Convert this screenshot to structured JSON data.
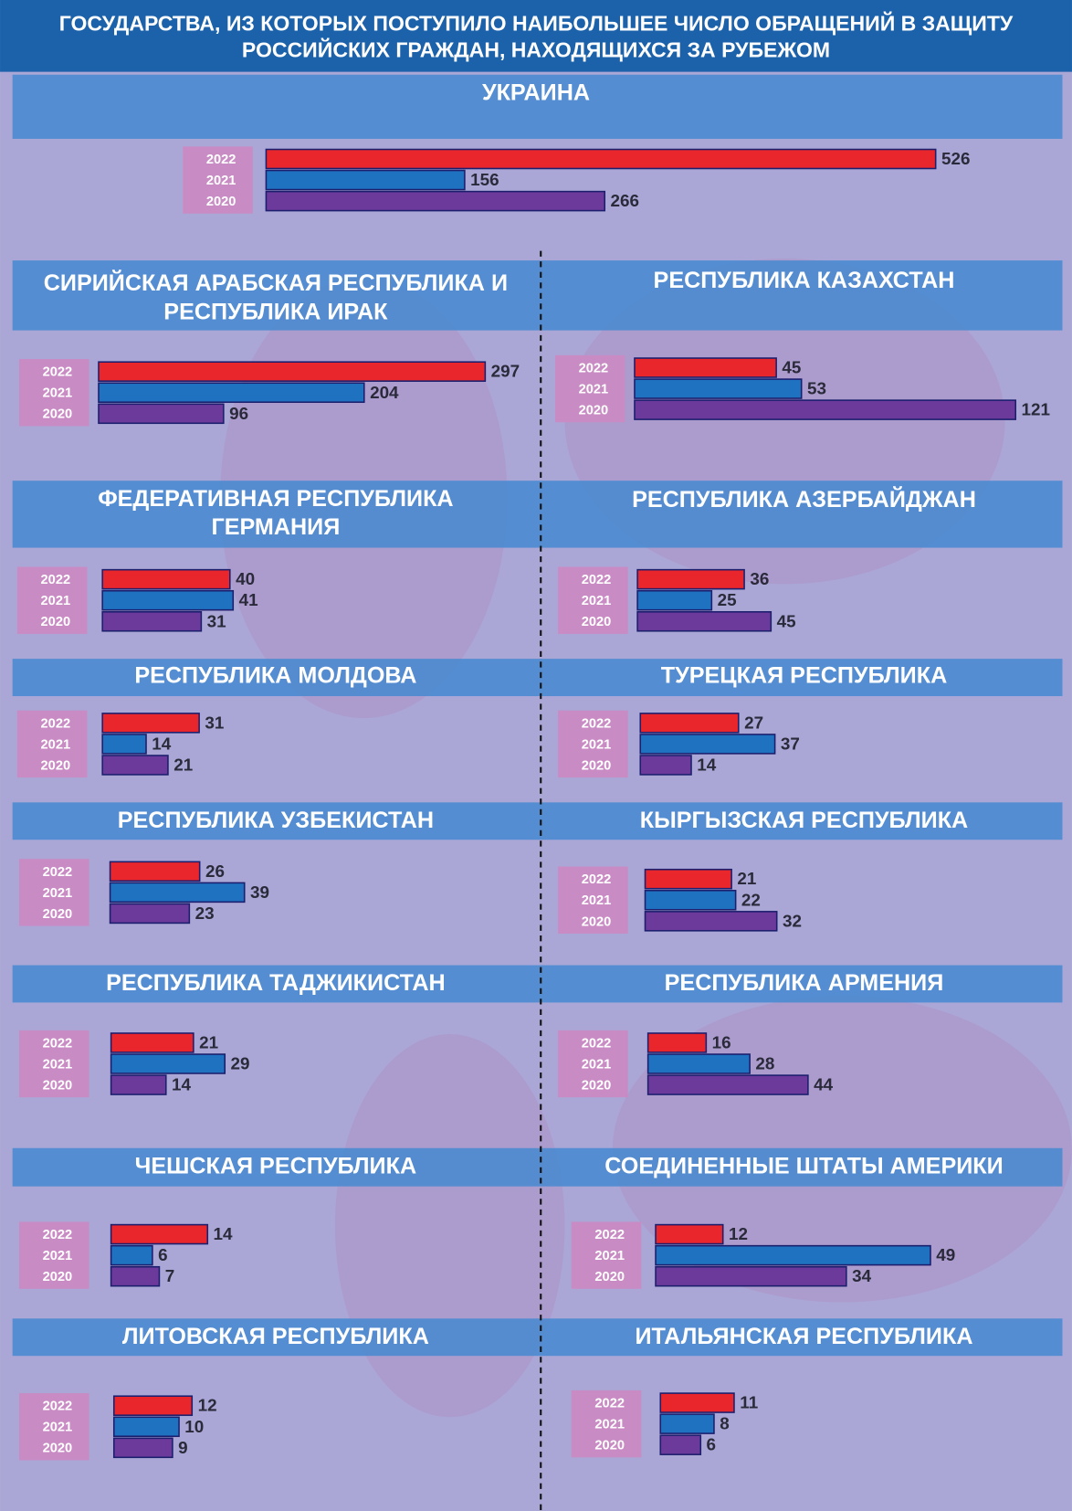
{
  "title": [
    "ГОСУДАРСТВА, ИЗ КОТОРЫХ ПОСТУПИЛО НАИБОЛЬШЕЕ ЧИСЛО ОБРАЩЕНИЙ В ЗАЩИТУ",
    "РОССИЙСКИХ ГРАЖДАН, НАХОДЯЩИХСЯ ЗА РУБЕЖОМ"
  ],
  "chart_data": [
    {
      "type": "hbar",
      "title": [
        "УКРАИНА"
      ],
      "categories": [
        "2022",
        "2021",
        "2020"
      ],
      "values": [
        526,
        156,
        266
      ],
      "colors": [
        "#e8262b",
        "#1f72c0",
        "#6b3a9b"
      ]
    },
    {
      "type": "hbar",
      "title": [
        "СИРИЙСКАЯ АРАБСКАЯ РЕСПУБЛИКА И",
        "РЕСПУБЛИКА ИРАК"
      ],
      "categories": [
        "2022",
        "2021",
        "2020"
      ],
      "values": [
        297,
        204,
        96
      ],
      "colors": [
        "#e8262b",
        "#1f72c0",
        "#6b3a9b"
      ]
    },
    {
      "type": "hbar",
      "title": [
        "РЕСПУБЛИКА КАЗАХСТАН"
      ],
      "categories": [
        "2022",
        "2021",
        "2020"
      ],
      "values": [
        45,
        53,
        121
      ],
      "colors": [
        "#e8262b",
        "#1f72c0",
        "#6b3a9b"
      ]
    },
    {
      "type": "hbar",
      "title": [
        "ФЕДЕРАТИВНАЯ РЕСПУБЛИКА",
        "ГЕРМАНИЯ"
      ],
      "categories": [
        "2022",
        "2021",
        "2020"
      ],
      "values": [
        40,
        41,
        31
      ],
      "colors": [
        "#e8262b",
        "#1f72c0",
        "#6b3a9b"
      ]
    },
    {
      "type": "hbar",
      "title": [
        "РЕСПУБЛИКА АЗЕРБАЙДЖАН"
      ],
      "categories": [
        "2022",
        "2021",
        "2020"
      ],
      "values": [
        36,
        25,
        45
      ],
      "colors": [
        "#e8262b",
        "#1f72c0",
        "#6b3a9b"
      ]
    },
    {
      "type": "hbar",
      "title": [
        "РЕСПУБЛИКА МОЛДОВА"
      ],
      "categories": [
        "2022",
        "2021",
        "2020"
      ],
      "values": [
        31,
        14,
        21
      ],
      "colors": [
        "#e8262b",
        "#1f72c0",
        "#6b3a9b"
      ]
    },
    {
      "type": "hbar",
      "title": [
        "ТУРЕЦКАЯ РЕСПУБЛИКА"
      ],
      "categories": [
        "2022",
        "2021",
        "2020"
      ],
      "values": [
        27,
        37,
        14
      ],
      "colors": [
        "#e8262b",
        "#1f72c0",
        "#6b3a9b"
      ]
    },
    {
      "type": "hbar",
      "title": [
        "РЕСПУБЛИКА УЗБЕКИСТАН"
      ],
      "categories": [
        "2022",
        "2021",
        "2020"
      ],
      "values": [
        26,
        39,
        23
      ],
      "colors": [
        "#e8262b",
        "#1f72c0",
        "#6b3a9b"
      ]
    },
    {
      "type": "hbar",
      "title": [
        "КЫРГЫЗСКАЯ РЕСПУБЛИКА"
      ],
      "categories": [
        "2022",
        "2021",
        "2020"
      ],
      "values": [
        21,
        22,
        32
      ],
      "colors": [
        "#e8262b",
        "#1f72c0",
        "#6b3a9b"
      ]
    },
    {
      "type": "hbar",
      "title": [
        "РЕСПУБЛИКА ТАДЖИКИСТАН"
      ],
      "categories": [
        "2022",
        "2021",
        "2020"
      ],
      "values": [
        21,
        29,
        14
      ],
      "colors": [
        "#e8262b",
        "#1f72c0",
        "#6b3a9b"
      ]
    },
    {
      "type": "hbar",
      "title": [
        "РЕСПУБЛИКА АРМЕНИЯ"
      ],
      "categories": [
        "2022",
        "2021",
        "2020"
      ],
      "values": [
        16,
        28,
        44
      ],
      "colors": [
        "#e8262b",
        "#1f72c0",
        "#6b3a9b"
      ]
    },
    {
      "type": "hbar",
      "title": [
        "ЧЕШСКАЯ РЕСПУБЛИКА"
      ],
      "categories": [
        "2022",
        "2021",
        "2020"
      ],
      "values": [
        14,
        6,
        7
      ],
      "colors": [
        "#e8262b",
        "#1f72c0",
        "#6b3a9b"
      ]
    },
    {
      "type": "hbar",
      "title": [
        "СОЕДИНЕННЫЕ ШТАТЫ АМЕРИКИ"
      ],
      "categories": [
        "2022",
        "2021",
        "2020"
      ],
      "values": [
        12,
        49,
        34
      ],
      "colors": [
        "#e8262b",
        "#1f72c0",
        "#6b3a9b"
      ]
    },
    {
      "type": "hbar",
      "title": [
        "ЛИТОВСКАЯ РЕСПУБЛИКА"
      ],
      "categories": [
        "2022",
        "2021",
        "2020"
      ],
      "values": [
        12,
        10,
        9
      ],
      "colors": [
        "#e8262b",
        "#1f72c0",
        "#6b3a9b"
      ]
    },
    {
      "type": "hbar",
      "title": [
        "ИТАЛЬЯНСКАЯ РЕСПУБЛИКА"
      ],
      "categories": [
        "2022",
        "2021",
        "2020"
      ],
      "values": [
        11,
        8,
        6
      ],
      "colors": [
        "#e8262b",
        "#1f72c0",
        "#6b3a9b"
      ]
    }
  ]
}
